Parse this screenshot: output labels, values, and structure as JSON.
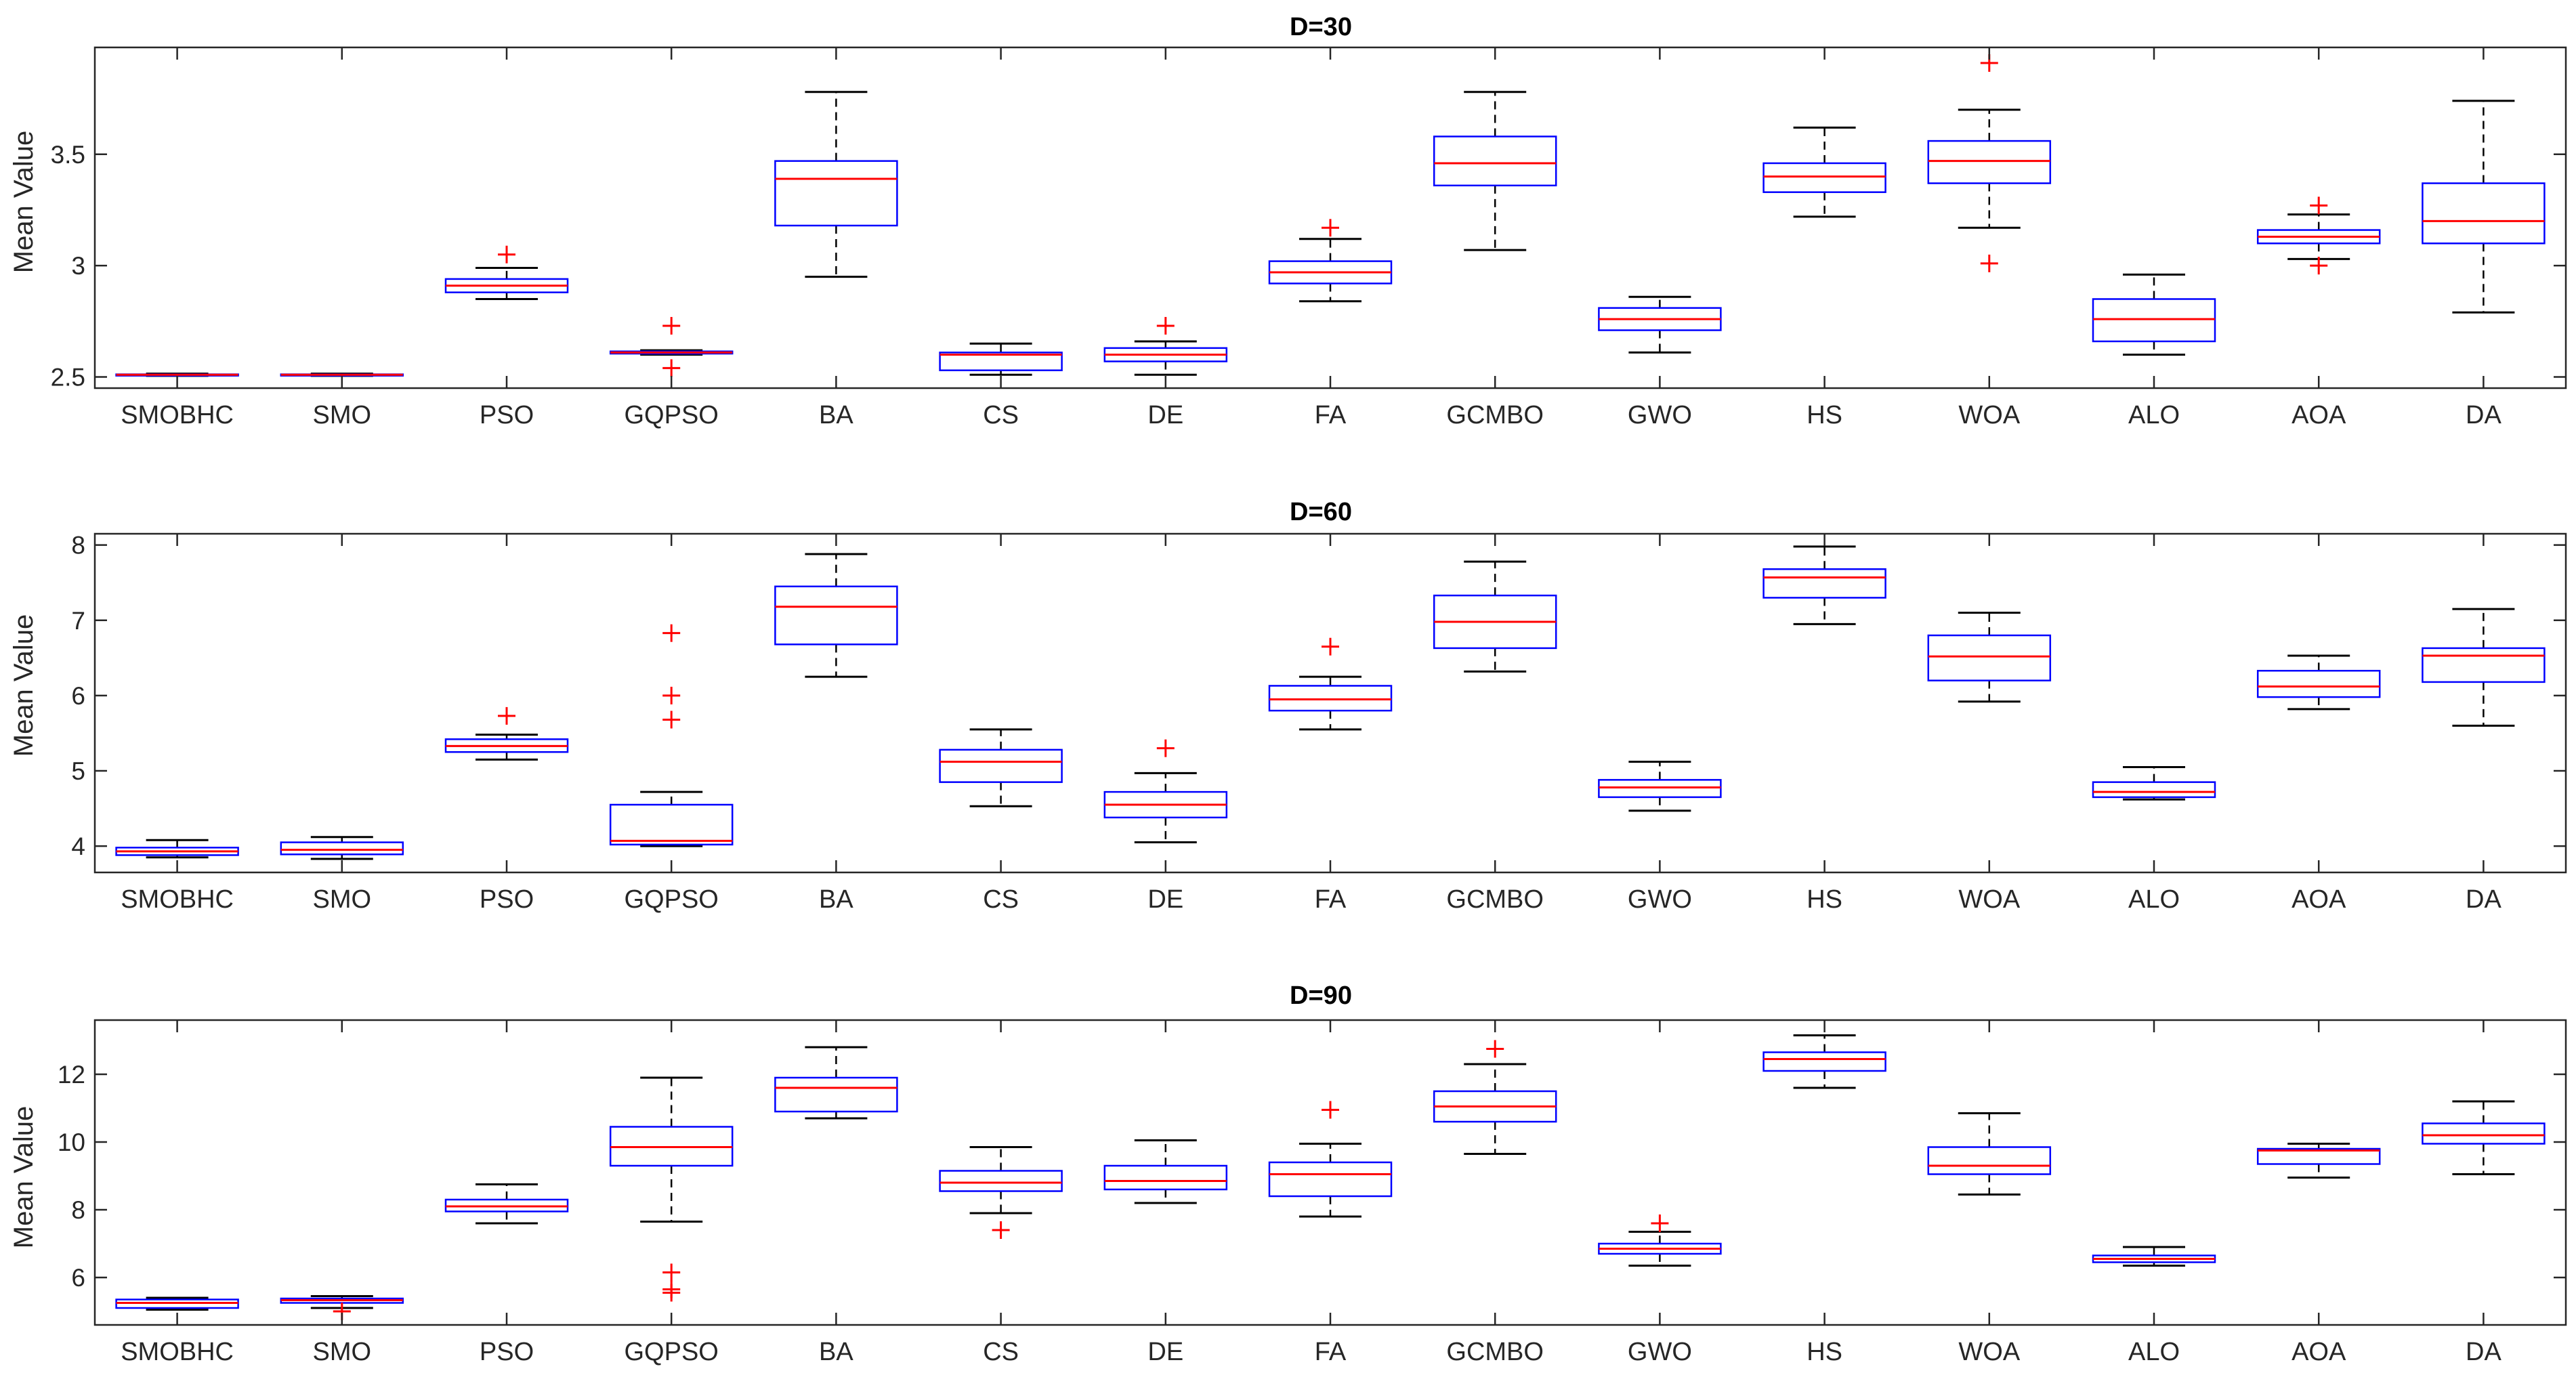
{
  "colors": {
    "box": "#0000ff",
    "median": "#ff0000",
    "whisker": "#000000",
    "outlier": "#ff0000",
    "axis": "#262626"
  },
  "chart_data": [
    {
      "type": "box",
      "title": "D=30",
      "ylabel": "Mean Value",
      "ylim": [
        2.45,
        3.98
      ],
      "yticks": [
        2.5,
        3,
        3.5
      ],
      "ytick_labels": [
        "2.5",
        "3",
        "3.5"
      ],
      "categories": [
        "SMOBHC",
        "SMO",
        "PSO",
        "GQPSO",
        "BA",
        "CS",
        "DE",
        "FA",
        "GCMBO",
        "GWO",
        "HS",
        "WOA",
        "ALO",
        "AOA",
        "DA"
      ],
      "boxes": [
        {
          "min": 2.505,
          "q1": 2.508,
          "median": 2.51,
          "q3": 2.512,
          "max": 2.515,
          "outliers": []
        },
        {
          "min": 2.505,
          "q1": 2.508,
          "median": 2.51,
          "q3": 2.512,
          "max": 2.515,
          "outliers": []
        },
        {
          "min": 2.85,
          "q1": 2.88,
          "median": 2.91,
          "q3": 2.94,
          "max": 2.99,
          "outliers": [
            3.05
          ]
        },
        {
          "min": 2.6,
          "q1": 2.605,
          "median": 2.61,
          "q3": 2.615,
          "max": 2.62,
          "outliers": [
            2.73,
            2.54
          ]
        },
        {
          "min": 2.95,
          "q1": 3.18,
          "median": 3.39,
          "q3": 3.47,
          "max": 3.78,
          "outliers": []
        },
        {
          "min": 2.51,
          "q1": 2.53,
          "median": 2.6,
          "q3": 2.61,
          "max": 2.65,
          "outliers": []
        },
        {
          "min": 2.51,
          "q1": 2.57,
          "median": 2.6,
          "q3": 2.63,
          "max": 2.66,
          "outliers": [
            2.73
          ]
        },
        {
          "min": 2.84,
          "q1": 2.92,
          "median": 2.97,
          "q3": 3.02,
          "max": 3.12,
          "outliers": [
            3.17
          ]
        },
        {
          "min": 3.07,
          "q1": 3.36,
          "median": 3.46,
          "q3": 3.58,
          "max": 3.78,
          "outliers": []
        },
        {
          "min": 2.61,
          "q1": 2.71,
          "median": 2.76,
          "q3": 2.81,
          "max": 2.86,
          "outliers": []
        },
        {
          "min": 3.22,
          "q1": 3.33,
          "median": 3.4,
          "q3": 3.46,
          "max": 3.62,
          "outliers": []
        },
        {
          "min": 3.17,
          "q1": 3.37,
          "median": 3.47,
          "q3": 3.56,
          "max": 3.7,
          "outliers": [
            3.91,
            3.01
          ]
        },
        {
          "min": 2.6,
          "q1": 2.66,
          "median": 2.76,
          "q3": 2.85,
          "max": 2.96,
          "outliers": []
        },
        {
          "min": 3.03,
          "q1": 3.1,
          "median": 3.13,
          "q3": 3.16,
          "max": 3.23,
          "outliers": [
            3.27,
            3.0
          ]
        },
        {
          "min": 2.79,
          "q1": 3.1,
          "median": 3.2,
          "q3": 3.37,
          "max": 3.74,
          "outliers": []
        }
      ]
    },
    {
      "type": "box",
      "title": "D=60",
      "ylabel": "Mean Value",
      "ylim": [
        3.65,
        8.15
      ],
      "yticks": [
        4,
        5,
        6,
        7,
        8
      ],
      "ytick_labels": [
        "4",
        "5",
        "6",
        "7",
        "8"
      ],
      "categories": [
        "SMOBHC",
        "SMO",
        "PSO",
        "GQPSO",
        "BA",
        "CS",
        "DE",
        "FA",
        "GCMBO",
        "GWO",
        "HS",
        "WOA",
        "ALO",
        "AOA",
        "DA"
      ],
      "boxes": [
        {
          "min": 3.85,
          "q1": 3.88,
          "median": 3.93,
          "q3": 3.98,
          "max": 4.08,
          "outliers": []
        },
        {
          "min": 3.83,
          "q1": 3.89,
          "median": 3.95,
          "q3": 4.05,
          "max": 4.12,
          "outliers": []
        },
        {
          "min": 5.15,
          "q1": 5.25,
          "median": 5.33,
          "q3": 5.42,
          "max": 5.48,
          "outliers": [
            5.73
          ]
        },
        {
          "min": 4.0,
          "q1": 4.02,
          "median": 4.07,
          "q3": 4.55,
          "max": 4.72,
          "outliers": [
            6.83,
            6.0,
            5.68
          ]
        },
        {
          "min": 6.25,
          "q1": 6.68,
          "median": 7.18,
          "q3": 7.45,
          "max": 7.88,
          "outliers": []
        },
        {
          "min": 4.53,
          "q1": 4.85,
          "median": 5.12,
          "q3": 5.28,
          "max": 5.55,
          "outliers": []
        },
        {
          "min": 4.05,
          "q1": 4.38,
          "median": 4.55,
          "q3": 4.72,
          "max": 4.97,
          "outliers": [
            5.3
          ]
        },
        {
          "min": 5.55,
          "q1": 5.8,
          "median": 5.95,
          "q3": 6.13,
          "max": 6.25,
          "outliers": [
            6.65
          ]
        },
        {
          "min": 6.32,
          "q1": 6.63,
          "median": 6.98,
          "q3": 7.33,
          "max": 7.78,
          "outliers": []
        },
        {
          "min": 4.47,
          "q1": 4.65,
          "median": 4.78,
          "q3": 4.88,
          "max": 5.12,
          "outliers": []
        },
        {
          "min": 6.95,
          "q1": 7.3,
          "median": 7.57,
          "q3": 7.68,
          "max": 7.98,
          "outliers": []
        },
        {
          "min": 5.92,
          "q1": 6.2,
          "median": 6.52,
          "q3": 6.8,
          "max": 7.1,
          "outliers": []
        },
        {
          "min": 4.62,
          "q1": 4.65,
          "median": 4.72,
          "q3": 4.85,
          "max": 5.05,
          "outliers": []
        },
        {
          "min": 5.82,
          "q1": 5.98,
          "median": 6.12,
          "q3": 6.33,
          "max": 6.53,
          "outliers": []
        },
        {
          "min": 5.6,
          "q1": 6.18,
          "median": 6.53,
          "q3": 6.63,
          "max": 7.15,
          "outliers": []
        }
      ]
    },
    {
      "type": "box",
      "title": "D=90",
      "ylabel": "Mean Value",
      "ylim": [
        4.6,
        13.6
      ],
      "yticks": [
        6,
        8,
        10,
        12
      ],
      "ytick_labels": [
        "6",
        "8",
        "10",
        "12"
      ],
      "categories": [
        "SMOBHC",
        "SMO",
        "PSO",
        "GQPSO",
        "BA",
        "CS",
        "DE",
        "FA",
        "GCMBO",
        "GWO",
        "HS",
        "WOA",
        "ALO",
        "AOA",
        "DA"
      ],
      "boxes": [
        {
          "min": 5.05,
          "q1": 5.1,
          "median": 5.25,
          "q3": 5.35,
          "max": 5.4,
          "outliers": []
        },
        {
          "min": 5.1,
          "q1": 5.25,
          "median": 5.33,
          "q3": 5.38,
          "max": 5.45,
          "outliers": [
            5.0
          ]
        },
        {
          "min": 7.6,
          "q1": 7.95,
          "median": 8.1,
          "q3": 8.3,
          "max": 8.75,
          "outliers": []
        },
        {
          "min": 7.65,
          "q1": 9.3,
          "median": 9.85,
          "q3": 10.45,
          "max": 11.9,
          "outliers": [
            6.15,
            5.65,
            5.55
          ]
        },
        {
          "min": 10.7,
          "q1": 10.9,
          "median": 11.6,
          "q3": 11.9,
          "max": 12.8,
          "outliers": []
        },
        {
          "min": 7.9,
          "q1": 8.55,
          "median": 8.8,
          "q3": 9.15,
          "max": 9.85,
          "outliers": [
            7.4
          ]
        },
        {
          "min": 8.2,
          "q1": 8.6,
          "median": 8.85,
          "q3": 9.3,
          "max": 10.05,
          "outliers": []
        },
        {
          "min": 7.8,
          "q1": 8.4,
          "median": 9.05,
          "q3": 9.4,
          "max": 9.95,
          "outliers": [
            10.95
          ]
        },
        {
          "min": 9.65,
          "q1": 10.6,
          "median": 11.05,
          "q3": 11.5,
          "max": 12.3,
          "outliers": [
            12.75
          ]
        },
        {
          "min": 6.35,
          "q1": 6.7,
          "median": 6.85,
          "q3": 7.0,
          "max": 7.35,
          "outliers": [
            7.6
          ]
        },
        {
          "min": 11.6,
          "q1": 12.1,
          "median": 12.45,
          "q3": 12.65,
          "max": 13.15,
          "outliers": []
        },
        {
          "min": 8.45,
          "q1": 9.05,
          "median": 9.3,
          "q3": 9.85,
          "max": 10.85,
          "outliers": []
        },
        {
          "min": 6.35,
          "q1": 6.45,
          "median": 6.55,
          "q3": 6.65,
          "max": 6.9,
          "outliers": []
        },
        {
          "min": 8.95,
          "q1": 9.35,
          "median": 9.75,
          "q3": 9.8,
          "max": 9.95,
          "outliers": []
        },
        {
          "min": 9.05,
          "q1": 9.95,
          "median": 10.2,
          "q3": 10.55,
          "max": 11.2,
          "outliers": []
        }
      ]
    }
  ]
}
